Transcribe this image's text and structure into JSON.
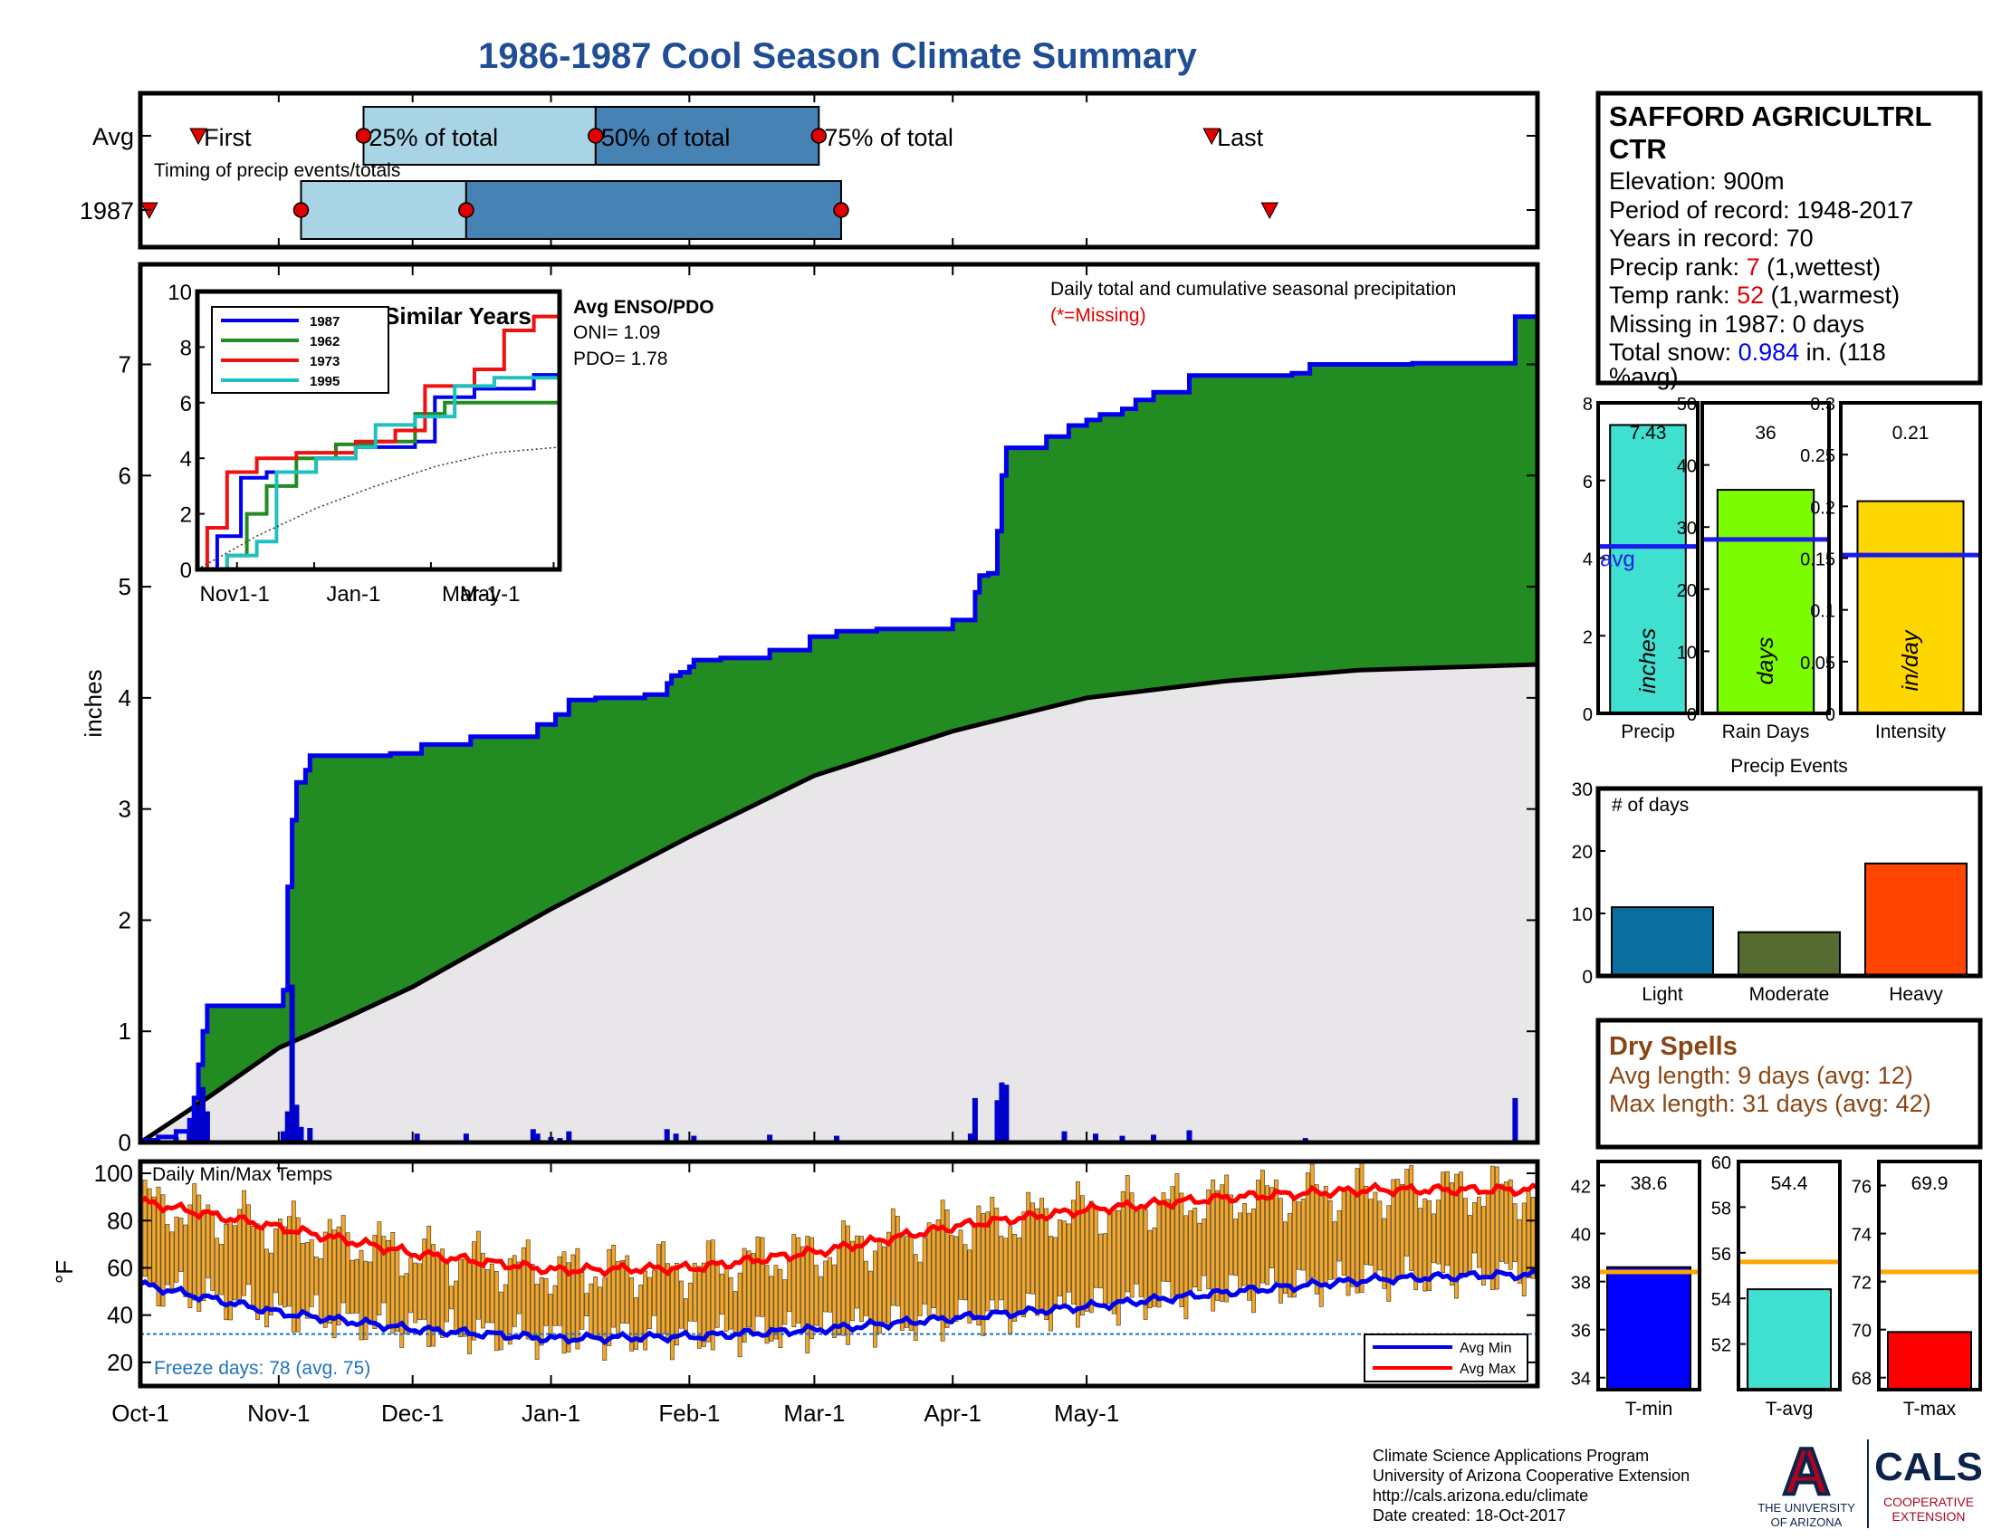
{
  "title": "1986-1987 Cool Season Climate Summary",
  "colors": {
    "title": "#1f4e96",
    "green": "#228b22",
    "cum_line": "#0000ee",
    "avg_fill": "#e8e6e8",
    "bar_blue": "#0000cc",
    "light_box": "#a8d4e6",
    "dark_box": "#4682b4",
    "marker": "#e00000",
    "orange": "#f5a623",
    "red_text": "#e00000",
    "blue_text": "#0000ee",
    "brown_text": "#8b4513",
    "freeze_text": "#1e73be",
    "arizona_blue": "#0c234b",
    "arizona_red": "#ab0520"
  },
  "timing": {
    "row_avg": "Avg",
    "row_year": "1987",
    "caption": "Timing of precip events/totals",
    "first_label": "First",
    "last_label": "Last",
    "p25_label": "25% of total",
    "p50_label": "50% of total",
    "p75_label": "75% of total",
    "avg_days": {
      "first": 13,
      "p25": 50,
      "p50": 102,
      "p75": 152,
      "last": 240
    },
    "year_days": {
      "first": 2,
      "p25": 36,
      "p50": 73,
      "p75": 157,
      "last": 253
    }
  },
  "main": {
    "ylabel": "inches",
    "annotation_title": "Daily total and cumulative seasonal precipitation",
    "annotation_missing": "(*=Missing)",
    "x_ticks": [
      "Oct-1",
      "Nov-1",
      "Dec-1",
      "Jan-1",
      "Feb-1",
      "Mar-1",
      "Apr-1",
      "May-1"
    ],
    "y_ticks": [
      "0",
      "1",
      "2",
      "3",
      "4",
      "5",
      "6",
      "7"
    ],
    "enso": {
      "title": "Avg ENSO/PDO",
      "oni": "ONI= 1.09",
      "pdo": "PDO= 1.78"
    }
  },
  "inset": {
    "title": "Similar Years",
    "x_ticks": [
      "Nov1-1",
      "Jan-1",
      "Mar-1",
      "May-1"
    ],
    "y_ticks": [
      "0",
      "2",
      "4",
      "6",
      "8",
      "10"
    ],
    "legend": [
      "1987",
      "1962",
      "1973",
      "1995"
    ],
    "legend_colors": [
      "#0000ee",
      "#228b22",
      "#ee1111",
      "#20c0c0"
    ]
  },
  "station": {
    "name_line1": "SAFFORD AGRICULTRL",
    "name_line2": "CTR",
    "elevation": "Elevation: 900m",
    "period": "Period of record: 1948-2017",
    "years": "Years in record: 70",
    "precip_rank_pre": "Precip rank: ",
    "precip_rank_val": "7",
    "precip_rank_post": " (1,wettest)",
    "temp_rank_pre": "Temp rank: ",
    "temp_rank_val": "52",
    "temp_rank_post": " (1,warmest)",
    "missing": "Missing in 1987: 0 days",
    "snow_pre": "Total snow: ",
    "snow_val": "0.984",
    "snow_post": " in. (118",
    "snow_line2": "%avg)"
  },
  "summary_bars": [
    {
      "label": "Precip",
      "unit": "inches",
      "value_text": "7.43",
      "value": 7.43,
      "avg": 4.3,
      "max": 8,
      "ticks": [
        "0",
        "2",
        "4",
        "6",
        "8"
      ],
      "color": "#40e0d0",
      "avg_text": "avg"
    },
    {
      "label": "Rain Days",
      "unit": "days",
      "value_text": "36",
      "value": 36,
      "avg": 28,
      "max": 50,
      "ticks": [
        "0",
        "10",
        "20",
        "30",
        "40",
        "50"
      ],
      "color": "#7cfc00"
    },
    {
      "label": "Intensity",
      "unit": "in/day",
      "value_text": "0.21",
      "value": 0.205,
      "avg": 0.153,
      "max": 0.3,
      "ticks": [
        "0",
        "0.05",
        "0.1",
        "0.15",
        "0.2",
        "0.25",
        "0.3"
      ],
      "color": "#ffd700"
    }
  ],
  "events": {
    "title": "Precip Events",
    "ylabel": "# of days",
    "categories": [
      "Light",
      "Moderate",
      "Heavy"
    ],
    "values": [
      11,
      7,
      18
    ],
    "colors": [
      "#0a6e9e",
      "#556b2f",
      "#ff4500"
    ],
    "ticks": [
      "0",
      "10",
      "20",
      "30"
    ]
  },
  "dry_spells": {
    "title": "Dry Spells",
    "avg_line": "Avg length: 9 days (avg: 12)",
    "max_line": "Max length: 31 days (avg: 42)"
  },
  "temps": {
    "title": "Daily Min/Max Temps",
    "ylabel": "°F",
    "y_ticks": [
      "20",
      "40",
      "60",
      "80",
      "100"
    ],
    "freeze_text": "Freeze days: 78 (avg. 75)",
    "legend_min": "Avg Min",
    "legend_max": "Avg Max"
  },
  "temp_bars": [
    {
      "label": "T-min",
      "value_text": "38.6",
      "value": 38.6,
      "avg": 38.4,
      "min": 33.5,
      "max": 43,
      "ticks": [
        "34",
        "36",
        "38",
        "40",
        "42"
      ],
      "color": "#0000ff"
    },
    {
      "label": "T-avg",
      "value_text": "54.4",
      "value": 54.4,
      "avg": 55.6,
      "min": 50,
      "max": 60,
      "ticks": [
        "52",
        "54",
        "56",
        "58",
        "60"
      ],
      "color": "#40e0d0"
    },
    {
      "label": "T-max",
      "value_text": "69.9",
      "value": 69.9,
      "avg": 72.4,
      "min": 67.5,
      "max": 77,
      "ticks": [
        "68",
        "70",
        "72",
        "74",
        "76"
      ],
      "color": "#ff0000"
    }
  ],
  "footer": {
    "line1": "Climate Science Applications Program",
    "line2": "University of Arizona Cooperative Extension",
    "line3": "http://cals.arizona.edu/climate",
    "line4": " Date created: 18-Oct-2017",
    "ua_logo_letter": "A",
    "ua_line1": "THE UNIVERSITY",
    "ua_line2": "OF ARIZONA",
    "cals": "CALS",
    "cals_line1": "COOPERATIVE",
    "cals_line2": "EXTENSION"
  },
  "chart_data": [
    {
      "type": "area",
      "title": "Daily total and cumulative seasonal precipitation",
      "ylabel": "inches",
      "ylim": [
        0,
        7.9
      ],
      "x_unit": "days since Oct-1 (season day)",
      "cumulative_1987": [
        [
          0,
          0
        ],
        [
          1,
          0.02
        ],
        [
          4,
          0.05
        ],
        [
          8,
          0.1
        ],
        [
          11,
          0.2
        ],
        [
          12,
          0.4
        ],
        [
          13,
          0.7
        ],
        [
          14,
          1.0
        ],
        [
          15,
          1.23
        ],
        [
          31,
          1.23
        ],
        [
          32,
          1.37
        ],
        [
          33,
          2.3
        ],
        [
          34,
          2.9
        ],
        [
          35,
          3.24
        ],
        [
          37,
          3.35
        ],
        [
          38,
          3.48
        ],
        [
          55,
          3.48
        ],
        [
          56,
          3.5
        ],
        [
          62,
          3.5
        ],
        [
          63,
          3.58
        ],
        [
          73,
          3.58
        ],
        [
          74,
          3.65
        ],
        [
          88,
          3.65
        ],
        [
          89,
          3.76
        ],
        [
          92,
          3.76
        ],
        [
          93,
          3.85
        ],
        [
          95,
          3.85
        ],
        [
          96,
          3.98
        ],
        [
          101,
          3.98
        ],
        [
          102,
          4.0
        ],
        [
          112,
          4.0
        ],
        [
          113,
          4.03
        ],
        [
          117,
          4.03
        ],
        [
          118,
          4.13
        ],
        [
          119,
          4.2
        ],
        [
          121,
          4.23
        ],
        [
          123,
          4.28
        ],
        [
          124,
          4.34
        ],
        [
          129,
          4.34
        ],
        [
          130,
          4.36
        ],
        [
          140,
          4.36
        ],
        [
          141,
          4.43
        ],
        [
          149,
          4.43
        ],
        [
          150,
          4.55
        ],
        [
          155,
          4.55
        ],
        [
          156,
          4.6
        ],
        [
          165,
          4.62
        ],
        [
          181,
          4.62
        ],
        [
          182,
          4.7
        ],
        [
          186,
          4.7
        ],
        [
          187,
          4.95
        ],
        [
          188,
          5.1
        ],
        [
          190,
          5.12
        ],
        [
          192,
          5.5
        ],
        [
          193,
          6.0
        ],
        [
          194,
          6.25
        ],
        [
          202,
          6.25
        ],
        [
          203,
          6.35
        ],
        [
          207,
          6.35
        ],
        [
          208,
          6.45
        ],
        [
          211,
          6.45
        ],
        [
          212,
          6.5
        ],
        [
          214,
          6.5
        ],
        [
          215,
          6.55
        ],
        [
          220,
          6.6
        ],
        [
          223,
          6.68
        ],
        [
          226,
          6.68
        ],
        [
          227,
          6.75
        ],
        [
          234,
          6.75
        ],
        [
          235,
          6.9
        ],
        [
          258,
          6.92
        ],
        [
          262,
          7.0
        ],
        [
          284,
          7.0
        ],
        [
          285,
          7.01
        ],
        [
          307,
          7.01
        ],
        [
          308,
          7.43
        ],
        [
          313,
          7.43
        ]
      ],
      "average_cumulative": [
        [
          0,
          0
        ],
        [
          15,
          0.4
        ],
        [
          31,
          0.85
        ],
        [
          45,
          1.1
        ],
        [
          61,
          1.4
        ],
        [
          92,
          2.1
        ],
        [
          123,
          2.75
        ],
        [
          151,
          3.3
        ],
        [
          182,
          3.7
        ],
        [
          212,
          4.0
        ],
        [
          243,
          4.15
        ],
        [
          273,
          4.25
        ],
        [
          313,
          4.3
        ]
      ],
      "daily_bars": [
        [
          8,
          0.05
        ],
        [
          11,
          0.12
        ],
        [
          12,
          0.22
        ],
        [
          13,
          0.33
        ],
        [
          14,
          0.5
        ],
        [
          15,
          0.28
        ],
        [
          32,
          0.1
        ],
        [
          33,
          0.28
        ],
        [
          34,
          1.42
        ],
        [
          35,
          0.34
        ],
        [
          36,
          0.14
        ],
        [
          38,
          0.13
        ],
        [
          62,
          0.08
        ],
        [
          73,
          0.08
        ],
        [
          88,
          0.12
        ],
        [
          89,
          0.08
        ],
        [
          92,
          0.05
        ],
        [
          94,
          0.04
        ],
        [
          96,
          0.1
        ],
        [
          118,
          0.12
        ],
        [
          120,
          0.08
        ],
        [
          124,
          0.06
        ],
        [
          141,
          0.07
        ],
        [
          156,
          0.06
        ],
        [
          186,
          0.08
        ],
        [
          187,
          0.4
        ],
        [
          192,
          0.38
        ],
        [
          193,
          0.54
        ],
        [
          194,
          0.52
        ],
        [
          207,
          0.1
        ],
        [
          214,
          0.08
        ],
        [
          220,
          0.06
        ],
        [
          227,
          0.07
        ],
        [
          235,
          0.11
        ],
        [
          261,
          0.04
        ],
        [
          308,
          0.4
        ]
      ]
    },
    {
      "type": "line",
      "title": "Similar Years",
      "ylim": [
        0,
        10
      ],
      "series": [
        {
          "name": "1987",
          "values": [
            [
              0,
              0
            ],
            [
              10,
              1.2
            ],
            [
              20,
              1.2
            ],
            [
              22,
              3.3
            ],
            [
              35,
              3.5
            ],
            [
              60,
              4.0
            ],
            [
              80,
              4.4
            ],
            [
              110,
              4.6
            ],
            [
              120,
              6.2
            ],
            [
              140,
              6.5
            ],
            [
              170,
              7.0
            ],
            [
              180,
              7.0
            ],
            [
              183,
              7.5
            ]
          ]
        },
        {
          "name": "1962",
          "values": [
            [
              0,
              0
            ],
            [
              15,
              0.5
            ],
            [
              25,
              2.0
            ],
            [
              35,
              3.0
            ],
            [
              50,
              4.0
            ],
            [
              70,
              4.5
            ],
            [
              90,
              4.6
            ],
            [
              110,
              5.6
            ],
            [
              125,
              6.0
            ],
            [
              183,
              6.0
            ]
          ]
        },
        {
          "name": "1973",
          "values": [
            [
              0,
              0
            ],
            [
              5,
              1.5
            ],
            [
              15,
              3.5
            ],
            [
              30,
              4.0
            ],
            [
              50,
              4.2
            ],
            [
              80,
              4.6
            ],
            [
              100,
              5.0
            ],
            [
              115,
              6.6
            ],
            [
              140,
              7.2
            ],
            [
              155,
              8.6
            ],
            [
              170,
              9.1
            ],
            [
              183,
              9.2
            ]
          ]
        },
        {
          "name": "1995",
          "values": [
            [
              0,
              0
            ],
            [
              15,
              0.5
            ],
            [
              30,
              1.0
            ],
            [
              40,
              3.5
            ],
            [
              60,
              4.0
            ],
            [
              80,
              4.4
            ],
            [
              90,
              5.2
            ],
            [
              110,
              5.5
            ],
            [
              130,
              6.6
            ],
            [
              150,
              6.9
            ],
            [
              183,
              7.0
            ]
          ]
        },
        {
          "name": "",
          "values": [
            [
              0,
              0
            ],
            [
              30,
              1.2
            ],
            [
              60,
              2.2
            ],
            [
              90,
              3.0
            ],
            [
              120,
              3.7
            ],
            [
              150,
              4.2
            ],
            [
              183,
              4.4
            ]
          ]
        }
      ]
    },
    {
      "type": "bar",
      "title": "Daily Min/Max Temps",
      "ylabel": "°F",
      "ylim": [
        10,
        105
      ],
      "freeze_line": 32,
      "avg_max": [
        [
          0,
          88
        ],
        [
          31,
          77
        ],
        [
          61,
          66
        ],
        [
          92,
          59
        ],
        [
          123,
          60
        ],
        [
          151,
          67
        ],
        [
          182,
          78
        ],
        [
          212,
          85
        ],
        [
          243,
          90
        ],
        [
          273,
          93
        ],
        [
          300,
          93
        ]
      ],
      "avg_min": [
        [
          0,
          53
        ],
        [
          31,
          41
        ],
        [
          61,
          34
        ],
        [
          92,
          30
        ],
        [
          123,
          31
        ],
        [
          151,
          34
        ],
        [
          182,
          39
        ],
        [
          212,
          44
        ],
        [
          243,
          50
        ],
        [
          273,
          55
        ],
        [
          300,
          57
        ]
      ]
    },
    {
      "type": "bar",
      "title": "Precip Events",
      "categories": [
        "Light",
        "Moderate",
        "Heavy"
      ],
      "values": [
        11,
        7,
        18
      ],
      "ylim": [
        0,
        30
      ]
    }
  ]
}
